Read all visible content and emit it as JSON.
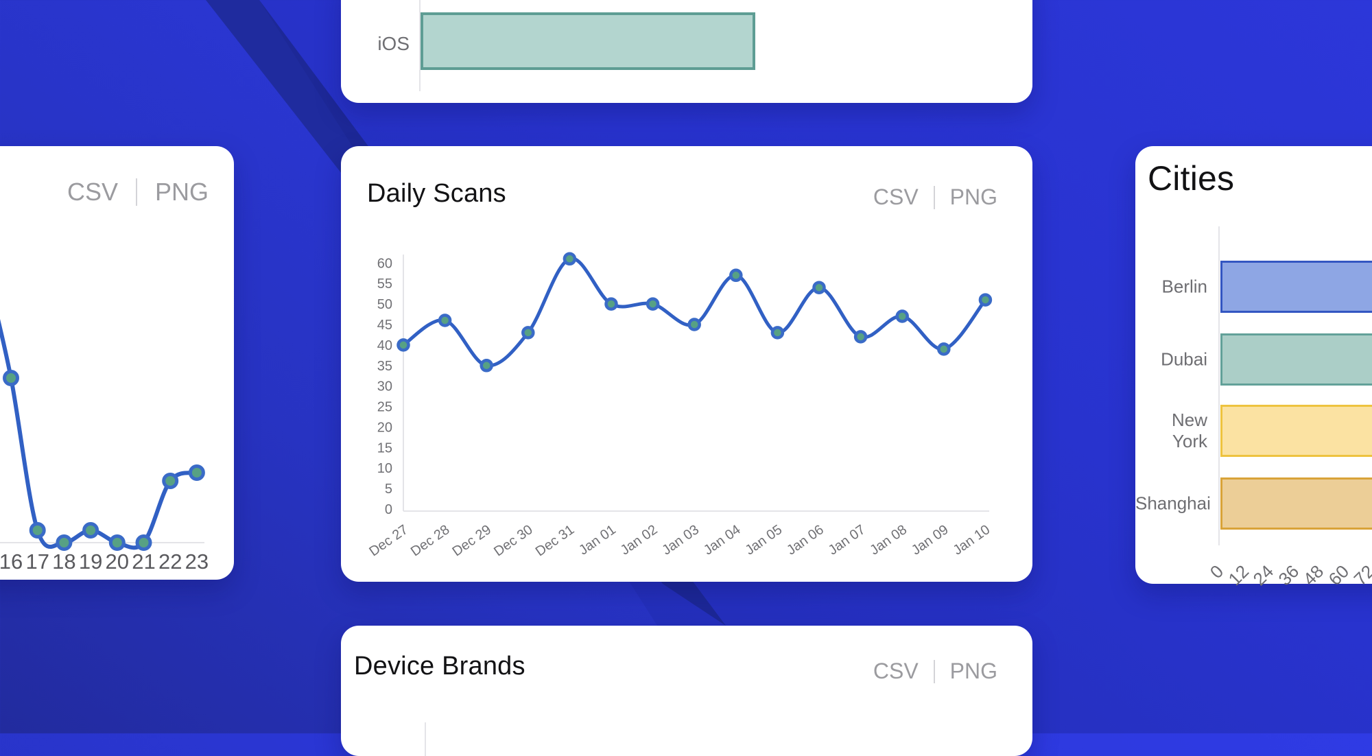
{
  "colors": {
    "background_blue": "#2b37d8",
    "background_dark_band": "#1f2b9e",
    "line_blue": "#3160c4",
    "marker_ring_blue": "#3a6bc7",
    "marker_fill_teal": "#57a184",
    "os_bar_fill": "#b3d5cf",
    "os_bar_border": "#5e9d94",
    "axis_gray": "#e4e4e8",
    "label_gray": "#707074",
    "export_gray": "#9b9b9f"
  },
  "cards": {
    "os_partial": {
      "row_label": "iOS"
    },
    "hourly": {
      "exports": {
        "csv": "CSV",
        "png": "PNG"
      }
    },
    "daily": {
      "title": "Daily Scans",
      "exports": {
        "csv": "CSV",
        "png": "PNG"
      }
    },
    "cities": {
      "title": "Cities"
    },
    "brands": {
      "title": "Device Brands",
      "exports": {
        "csv": "CSV",
        "png": "PNG"
      }
    }
  },
  "chart_data": [
    {
      "id": "hourly_scans_partial",
      "type": "line",
      "title": "",
      "x": [
        "16",
        "17",
        "18",
        "19",
        "20",
        "21",
        "22",
        "23"
      ],
      "values": [
        40,
        3,
        0,
        3,
        0,
        0,
        15,
        17
      ],
      "note_clipped": "card cut off at left edge of screenshot; line enters from higher off-screen value; no y-axis labels visible",
      "grid": false,
      "legend": false
    },
    {
      "id": "daily_scans",
      "type": "line",
      "title": "Daily Scans",
      "categories": [
        "Dec 27",
        "Dec 28",
        "Dec 29",
        "Dec 30",
        "Dec 31",
        "Jan 01",
        "Jan 02",
        "Jan 03",
        "Jan 04",
        "Jan 05",
        "Jan 06",
        "Jan 07",
        "Jan 08",
        "Jan 09",
        "Jan 10"
      ],
      "values": [
        40,
        46,
        35,
        43,
        61,
        50,
        50,
        45,
        57,
        43,
        54,
        42,
        47,
        39,
        51
      ],
      "ylim": [
        0,
        60
      ],
      "yticks": [
        0,
        5,
        10,
        15,
        20,
        25,
        30,
        35,
        40,
        45,
        50,
        55,
        60
      ],
      "xlabel": "",
      "ylabel": "",
      "grid": false,
      "legend": false
    },
    {
      "id": "os_partial",
      "type": "bar",
      "orientation": "horizontal",
      "categories": [
        "iOS"
      ],
      "values": [
        null
      ],
      "note_clipped": "only bottom row of chart visible; axis scale cut off at top of screenshot"
    },
    {
      "id": "cities",
      "type": "bar",
      "orientation": "horizontal",
      "title": "Cities",
      "categories": [
        "Berlin",
        "Dubai",
        "New York",
        "Shanghai"
      ],
      "values": [
        74,
        74,
        74,
        74
      ],
      "xticks": [
        0,
        12,
        24,
        36,
        48,
        60,
        72
      ],
      "note_clipped": "bars extend past right edge of screenshot; values estimated as >72",
      "bar_colors": [
        {
          "fill": "#8ea6e4",
          "border": "#3356c2"
        },
        {
          "fill": "#abcec7",
          "border": "#62a199"
        },
        {
          "fill": "#fbe2a2",
          "border": "#eec33f"
        },
        {
          "fill": "#ecce97",
          "border": "#d9a339"
        }
      ],
      "grid": false,
      "legend": false
    },
    {
      "id": "device_brands",
      "type": "bar",
      "title": "Device Brands",
      "note_clipped": "only card header visible; chart cut off at bottom of screenshot"
    }
  ]
}
